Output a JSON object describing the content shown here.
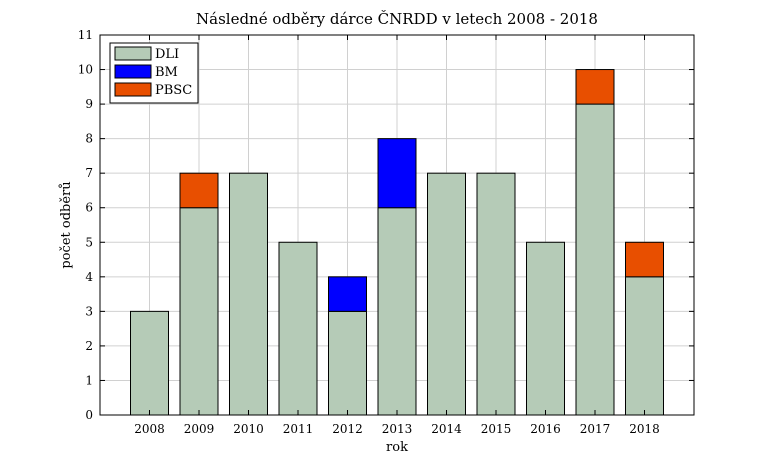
{
  "chart_data": {
    "type": "bar",
    "stacked": true,
    "title": "Následné odběry dárce ČNRDD v letech 2008 - 2018",
    "xlabel": "rok",
    "ylabel": "počet odběrů",
    "ylim": [
      0,
      11
    ],
    "yticks": [
      0,
      1,
      2,
      3,
      4,
      5,
      6,
      7,
      8,
      9,
      10,
      11
    ],
    "grid": true,
    "legend_position": "top-left",
    "categories": [
      "2008",
      "2009",
      "2010",
      "2011",
      "2012",
      "2013",
      "2014",
      "2015",
      "2016",
      "2017",
      "2018"
    ],
    "series": [
      {
        "name": "DLI",
        "color": "#b5cbb7",
        "values": [
          3,
          6,
          7,
          5,
          3,
          6,
          7,
          7,
          5,
          9,
          4
        ]
      },
      {
        "name": "BM",
        "color": "#0000ff",
        "values": [
          0,
          0,
          0,
          0,
          1,
          2,
          0,
          0,
          0,
          0,
          0
        ]
      },
      {
        "name": "PBSC",
        "color": "#e84f00",
        "values": [
          0,
          1,
          0,
          0,
          0,
          0,
          0,
          0,
          0,
          1,
          1
        ]
      }
    ]
  }
}
